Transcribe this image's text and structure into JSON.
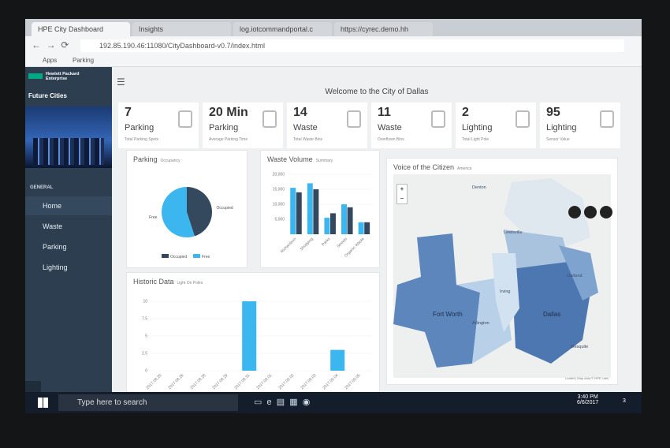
{
  "browser": {
    "tabs": [
      "HPE City Dashboard",
      "Insights",
      "log.iotcommandportal.c",
      "https://cyrec.demo.hh"
    ],
    "url": "192.85.190.46:11080/CityDashboard-v0.7/index.html",
    "bookmarks": [
      "Apps",
      "Parking"
    ]
  },
  "sidebar": {
    "brand": "Hewlett Packard Enterprise",
    "program": "Future Cities",
    "section": "GENERAL",
    "items": [
      "Home",
      "Waste",
      "Parking",
      "Lighting"
    ]
  },
  "header": {
    "title": "Welcome to the City of Dallas"
  },
  "kpis": [
    {
      "value": 7,
      "label": "Parking",
      "caption": "Total Parking Spots"
    },
    {
      "value": "20 Min",
      "label": "Parking",
      "caption": "Average Parking Time"
    },
    {
      "value": 14,
      "label": "Waste",
      "caption": "Total Waste Bins"
    },
    {
      "value": 11,
      "label": "Waste",
      "caption": "Overflown Bins"
    },
    {
      "value": 2,
      "label": "Lighting",
      "caption": "Total Light Pole"
    },
    {
      "value": 95,
      "label": "Lighting",
      "caption": "Sensor Value"
    }
  ],
  "parking_chart": {
    "type": "pie",
    "title": "Parking",
    "subtitle": "Occupancy",
    "labels": [
      "Occupied",
      "Free"
    ],
    "values": [
      45,
      55
    ],
    "colors": [
      "#34495e",
      "#3bb6ef"
    ]
  },
  "waste_chart": {
    "type": "bar",
    "title": "Waste Volume",
    "subtitle": "Summary",
    "categories": [
      "Richardson",
      "Shopping",
      "Parks",
      "Streets",
      "Organic Waste"
    ],
    "series": [
      {
        "color": "#3bb6ef",
        "values": [
          15500,
          17000,
          5500,
          10000,
          4000
        ]
      },
      {
        "color": "#34495e",
        "values": [
          14000,
          15000,
          7000,
          9000,
          4000
        ]
      }
    ],
    "ylim": [
      0,
      20000
    ],
    "yticks": [
      {
        "value": 5000,
        "label": "5,000"
      },
      {
        "value": 10000,
        "label": "10,000"
      },
      {
        "value": 15000,
        "label": "15,000"
      },
      {
        "value": 20000,
        "label": "20,000"
      }
    ]
  },
  "historic_chart": {
    "type": "bar",
    "title": "Historic Data",
    "subtitle": "Light On Poles",
    "color": "#3bb6ef",
    "categories": [
      "2017.08.25",
      "2017.08.26",
      "2017.08.28",
      "2017.08.29",
      "2017.08.31",
      "2017.09.01",
      "2017.09.02",
      "2017.09.03",
      "2017.09.04",
      "2017.09.05"
    ],
    "values": [
      0,
      0,
      0,
      0,
      10,
      0,
      0,
      0,
      3,
      0
    ],
    "ylim": [
      0,
      10
    ],
    "yticks": [
      0,
      2.5,
      5,
      7.5,
      10
    ]
  },
  "map": {
    "title": "Voice of the Citizen",
    "subtitle": "America",
    "zoom": [
      "+",
      "−"
    ],
    "places": [
      "Denton",
      "Lewisville",
      "Fort Worth",
      "Arlington",
      "Irving",
      "Dallas",
      "Garland",
      "Mesquite"
    ],
    "attribution": "Leaflet | Map data © HPE Labs"
  },
  "taskbar": {
    "search": "Type here to search",
    "time": "3:40 PM",
    "date": "6/6/2017",
    "notifications": 3
  }
}
